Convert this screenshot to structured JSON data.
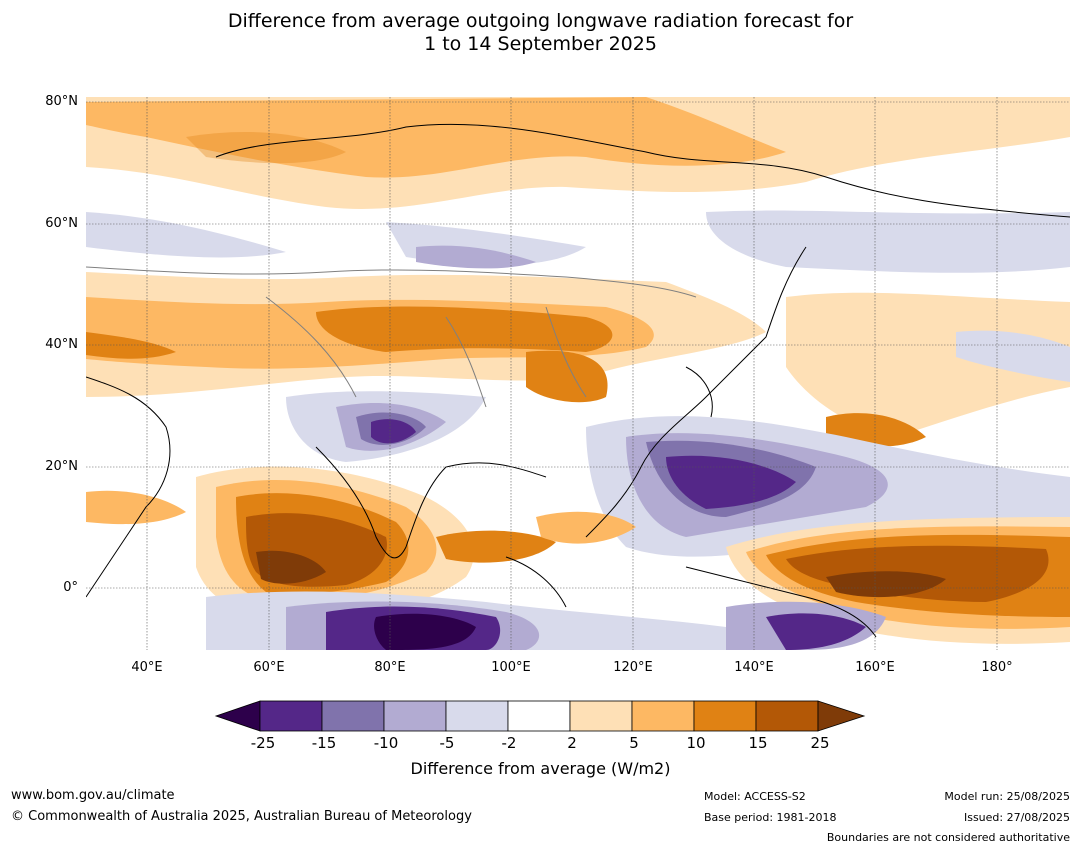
{
  "title": {
    "line1": "Difference from average outgoing longwave radiation forecast for",
    "line2": "1 to 14 September 2025"
  },
  "map": {
    "lat_labels": [
      "80°N",
      "60°N",
      "40°N",
      "20°N",
      "0°"
    ],
    "lon_labels": [
      "40°E",
      "60°E",
      "80°E",
      "100°E",
      "120°E",
      "140°E",
      "160°E",
      "180°"
    ]
  },
  "colorbar": {
    "ticks": [
      "-25",
      "-15",
      "-10",
      "-5",
      "-2",
      "2",
      "5",
      "10",
      "15",
      "25"
    ],
    "colors": {
      "below_min": "#2d004b",
      "bins": [
        "#542788",
        "#8073ac",
        "#b2abd2",
        "#d8daeb",
        "#ffffff",
        "#fee0b6",
        "#fdb863",
        "#e08214",
        "#b35806"
      ],
      "above_max": "#7f3b08"
    },
    "label": "Difference from average (W/m2)"
  },
  "footer": {
    "website": "www.bom.gov.au/climate",
    "copyright": "© Commonwealth of Australia 2025, Australian Bureau of Meteorology",
    "model": "Model: ACCESS-S2",
    "base_period": "Base period: 1981-2018",
    "model_run": "Model run: 25/08/2025",
    "issued": "Issued: 27/08/2025",
    "disclaimer": "Boundaries are not considered authoritative"
  }
}
